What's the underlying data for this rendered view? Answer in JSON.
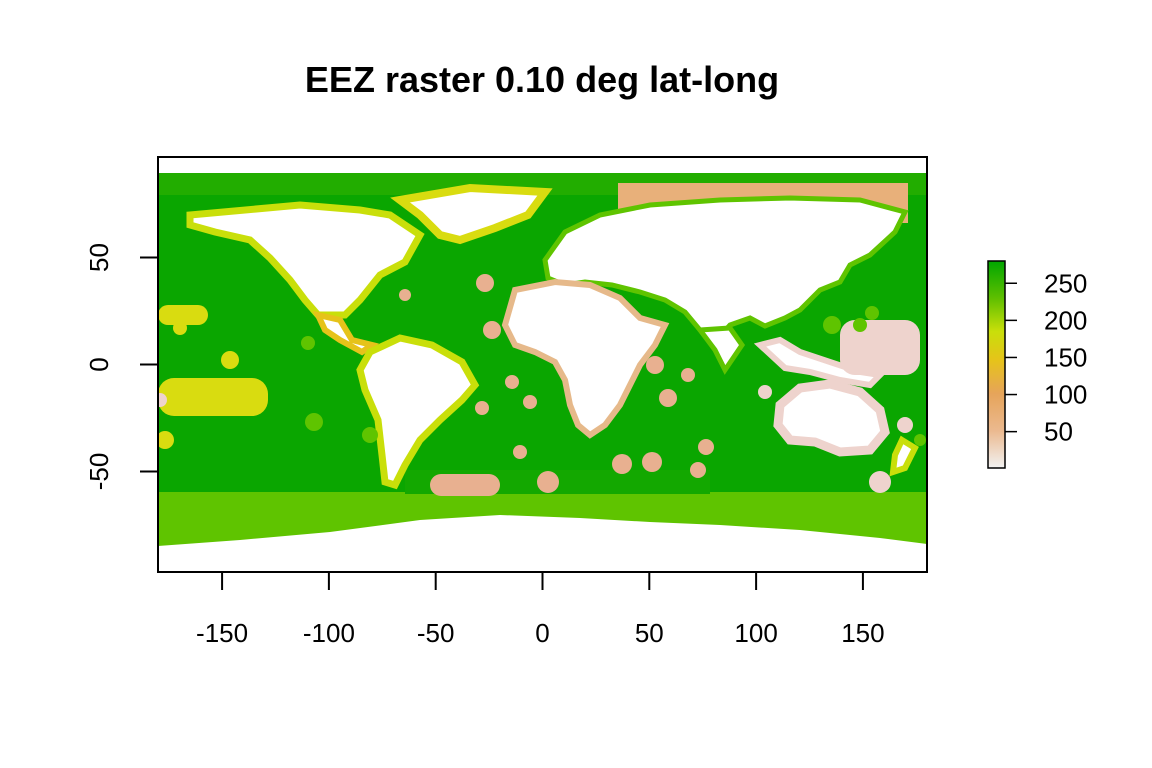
{
  "title": "EEZ raster 0.10 deg lat-long",
  "chart_data": {
    "type": "heatmap",
    "title": "EEZ raster 0.10 deg lat-long",
    "xlabel": "",
    "ylabel": "",
    "xlim": [
      -180,
      180
    ],
    "ylim": [
      -97,
      97
    ],
    "x_ticks": [
      -150,
      -100,
      -50,
      0,
      50,
      100,
      150
    ],
    "x_tick_labels": [
      "-150",
      "-100",
      "-50",
      "0",
      "50",
      "100",
      "150"
    ],
    "y_ticks": [
      50,
      0,
      -50
    ],
    "y_tick_labels": [
      "50",
      "0",
      "-50"
    ],
    "legend": {
      "placement": "right",
      "range": [
        1,
        280
      ],
      "ticks": [
        250,
        200,
        150,
        100,
        50
      ],
      "tick_labels": [
        "250",
        "200",
        "150",
        "100",
        "50"
      ],
      "colors": [
        "#f2f2f2",
        "#ebb98f",
        "#e6c31a",
        "#c9df0a",
        "#5fbf00",
        "#00a600"
      ]
    }
  }
}
